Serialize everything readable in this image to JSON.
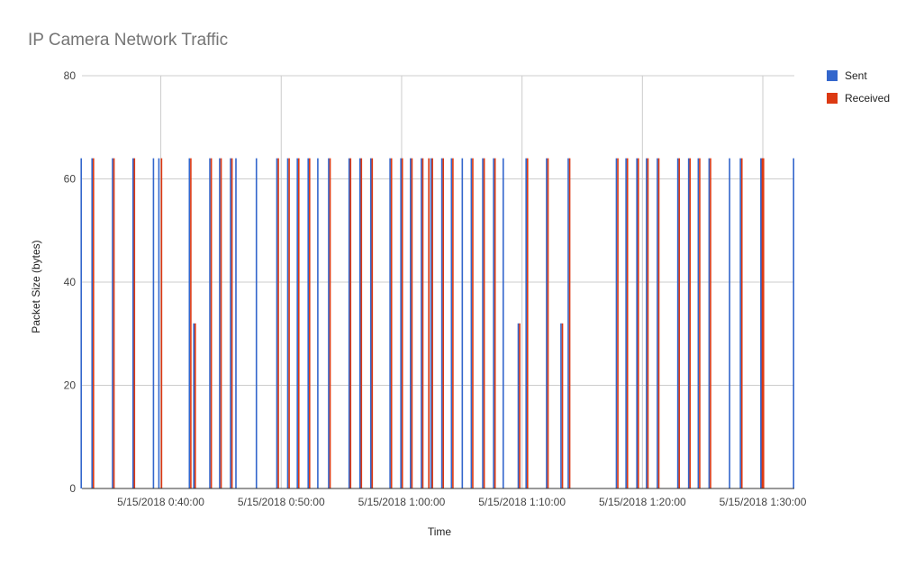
{
  "chart_data": {
    "type": "bar",
    "title": "IP Camera Network Traffic",
    "xlabel": "Time",
    "ylabel": "Packet Size (bytes)",
    "ylim": [
      0,
      80
    ],
    "yticks": [
      0,
      20,
      40,
      60,
      80
    ],
    "xlim": [
      "5/15/2018 0:33:27",
      "5/15/2018 1:32:37"
    ],
    "xticks": [
      "5/15/2018 0:40:00",
      "5/15/2018 0:50:00",
      "5/15/2018 1:00:00",
      "5/15/2018 1:10:00",
      "5/15/2018 1:20:00",
      "5/15/2018 1:30:00"
    ],
    "grid": true,
    "legend_position": "right",
    "series": [
      {
        "name": "Sent",
        "color": "#3366cc",
        "points": [
          [
            "5/15/2018 0:33:27",
            64
          ],
          [
            "5/15/2018 0:34:21",
            64
          ],
          [
            "5/15/2018 0:36:03",
            64
          ],
          [
            "5/15/2018 0:37:45",
            64
          ],
          [
            "5/15/2018 0:39:27",
            64
          ],
          [
            "5/15/2018 0:39:54",
            64
          ],
          [
            "5/15/2018 0:42:26",
            64
          ],
          [
            "5/15/2018 0:42:48",
            32
          ],
          [
            "5/15/2018 0:44:08",
            64
          ],
          [
            "5/15/2018 0:44:57",
            64
          ],
          [
            "5/15/2018 0:45:51",
            64
          ],
          [
            "5/15/2018 0:46:18",
            64
          ],
          [
            "5/15/2018 0:48:00",
            64
          ],
          [
            "5/15/2018 0:49:42",
            64
          ],
          [
            "5/15/2018 0:50:36",
            64
          ],
          [
            "5/15/2018 0:51:24",
            64
          ],
          [
            "5/15/2018 0:52:18",
            64
          ],
          [
            "5/15/2018 0:53:06",
            64
          ],
          [
            "5/15/2018 0:54:00",
            64
          ],
          [
            "5/15/2018 0:55:42",
            64
          ],
          [
            "5/15/2018 0:56:36",
            64
          ],
          [
            "5/15/2018 0:57:30",
            64
          ],
          [
            "5/15/2018 0:59:06",
            64
          ],
          [
            "5/15/2018 1:00:00",
            64
          ],
          [
            "5/15/2018 1:00:48",
            64
          ],
          [
            "5/15/2018 1:01:42",
            64
          ],
          [
            "5/15/2018 1:02:30",
            64
          ],
          [
            "5/15/2018 1:03:24",
            64
          ],
          [
            "5/15/2018 1:04:12",
            64
          ],
          [
            "5/15/2018 1:05:06",
            64
          ],
          [
            "5/15/2018 1:05:51",
            64
          ],
          [
            "5/15/2018 1:06:48",
            64
          ],
          [
            "5/15/2018 1:07:42",
            64
          ],
          [
            "5/15/2018 1:08:30",
            64
          ],
          [
            "5/15/2018 1:09:45",
            32
          ],
          [
            "5/15/2018 1:10:24",
            64
          ],
          [
            "5/15/2018 1:12:06",
            64
          ],
          [
            "5/15/2018 1:13:18",
            32
          ],
          [
            "5/15/2018 1:13:54",
            64
          ],
          [
            "5/15/2018 1:17:54",
            64
          ],
          [
            "5/15/2018 1:18:42",
            64
          ],
          [
            "5/15/2018 1:19:36",
            64
          ],
          [
            "5/15/2018 1:20:24",
            64
          ],
          [
            "5/15/2018 1:21:18",
            64
          ],
          [
            "5/15/2018 1:23:00",
            64
          ],
          [
            "5/15/2018 1:23:54",
            64
          ],
          [
            "5/15/2018 1:24:42",
            64
          ],
          [
            "5/15/2018 1:25:36",
            64
          ],
          [
            "5/15/2018 1:27:18",
            64
          ],
          [
            "5/15/2018 1:28:12",
            64
          ],
          [
            "5/15/2018 1:29:54",
            64
          ],
          [
            "5/15/2018 1:30:00",
            64
          ],
          [
            "5/15/2018 1:32:37",
            64
          ]
        ]
      },
      {
        "name": "Received",
        "color": "#dc3912",
        "points": [
          [
            "5/15/2018 0:34:21",
            64
          ],
          [
            "5/15/2018 0:36:03",
            64
          ],
          [
            "5/15/2018 0:37:45",
            64
          ],
          [
            "5/15/2018 0:40:00",
            64
          ],
          [
            "5/15/2018 0:42:26",
            64
          ],
          [
            "5/15/2018 0:42:48",
            32
          ],
          [
            "5/15/2018 0:44:08",
            64
          ],
          [
            "5/15/2018 0:44:57",
            64
          ],
          [
            "5/15/2018 0:45:51",
            64
          ],
          [
            "5/15/2018 0:49:42",
            64
          ],
          [
            "5/15/2018 0:50:36",
            64
          ],
          [
            "5/15/2018 0:51:24",
            64
          ],
          [
            "5/15/2018 0:52:18",
            64
          ],
          [
            "5/15/2018 0:54:00",
            64
          ],
          [
            "5/15/2018 0:55:42",
            64
          ],
          [
            "5/15/2018 0:56:36",
            64
          ],
          [
            "5/15/2018 0:57:30",
            64
          ],
          [
            "5/15/2018 0:59:06",
            64
          ],
          [
            "5/15/2018 1:00:00",
            64
          ],
          [
            "5/15/2018 1:00:48",
            64
          ],
          [
            "5/15/2018 1:01:42",
            64
          ],
          [
            "5/15/2018 1:02:12",
            64
          ],
          [
            "5/15/2018 1:02:30",
            64
          ],
          [
            "5/15/2018 1:03:24",
            64
          ],
          [
            "5/15/2018 1:04:12",
            64
          ],
          [
            "5/15/2018 1:05:51",
            64
          ],
          [
            "5/15/2018 1:06:48",
            64
          ],
          [
            "5/15/2018 1:07:42",
            64
          ],
          [
            "5/15/2018 1:09:45",
            32
          ],
          [
            "5/15/2018 1:10:24",
            64
          ],
          [
            "5/15/2018 1:12:06",
            64
          ],
          [
            "5/15/2018 1:13:18",
            32
          ],
          [
            "5/15/2018 1:13:54",
            64
          ],
          [
            "5/15/2018 1:17:54",
            64
          ],
          [
            "5/15/2018 1:18:42",
            64
          ],
          [
            "5/15/2018 1:19:36",
            64
          ],
          [
            "5/15/2018 1:20:24",
            64
          ],
          [
            "5/15/2018 1:21:18",
            64
          ],
          [
            "5/15/2018 1:23:00",
            64
          ],
          [
            "5/15/2018 1:23:54",
            64
          ],
          [
            "5/15/2018 1:24:42",
            64
          ],
          [
            "5/15/2018 1:25:36",
            64
          ],
          [
            "5/15/2018 1:28:12",
            64
          ],
          [
            "5/15/2018 1:29:54",
            64
          ],
          [
            "5/15/2018 1:30:00",
            64
          ]
        ]
      }
    ]
  }
}
